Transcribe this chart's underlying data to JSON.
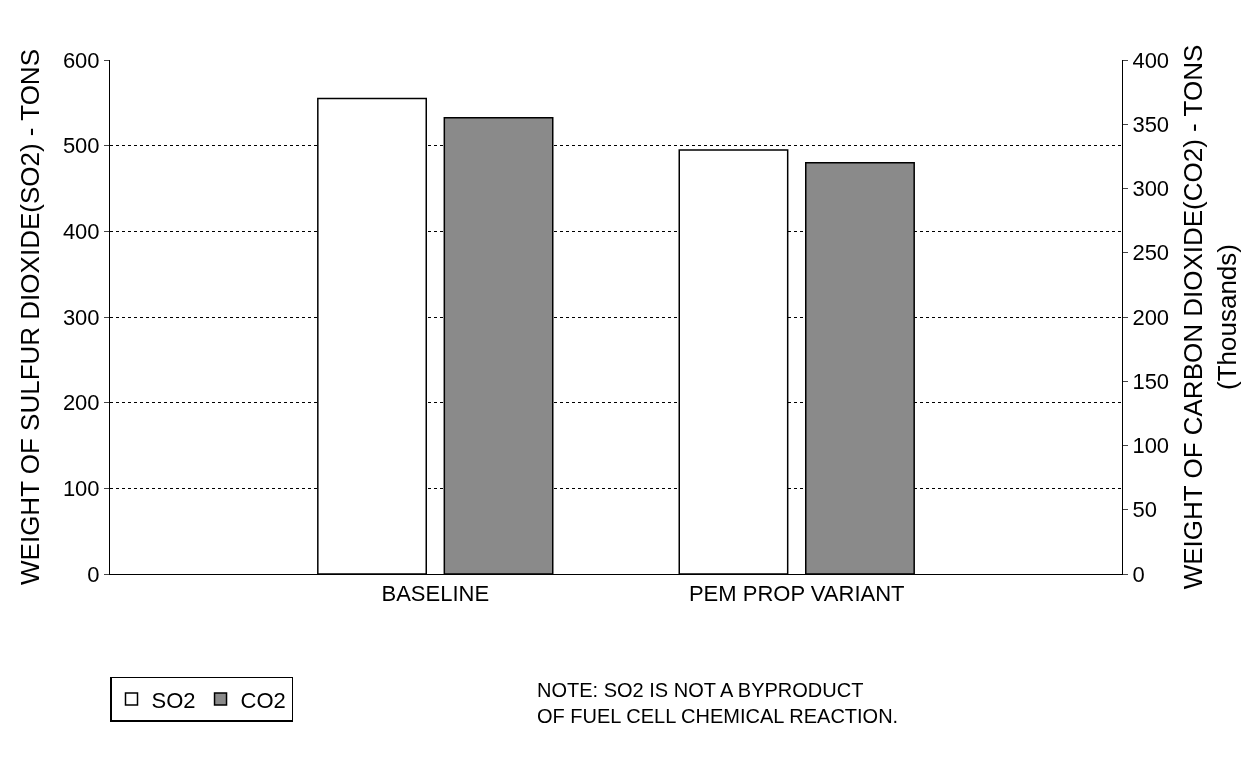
{
  "chart_data": {
    "type": "bar",
    "categories": [
      "BASELINE",
      "PEM PROP VARIANT"
    ],
    "ylabel": "WEIGHT OF SULFUR DIOXIDE(SO2) - TONS",
    "y2label": "WEIGHT OF CARBON DIOXIDE(CO2) - TONS\n(Thousands)",
    "series": [
      {
        "name": "SO2",
        "color": "#ffffff",
        "values": [
          555,
          495
        ]
      },
      {
        "name": "CO2",
        "color": "#8a8a8a",
        "values": [
          355,
          320
        ],
        "axis": "y2"
      }
    ],
    "ylim": [
      0,
      600
    ],
    "yticks": [
      0,
      100,
      200,
      300,
      400,
      500,
      600
    ],
    "y2lim": [
      0,
      400
    ],
    "y2ticks": [
      0,
      50,
      100,
      150,
      200,
      250,
      300,
      350,
      400
    ],
    "grid": "y",
    "legend": "bottom left",
    "annotations": [
      "NOTE: SO2 IS NOT A BYPRODUCT\nOF FUEL CELL CHEMICAL REACTION."
    ]
  }
}
